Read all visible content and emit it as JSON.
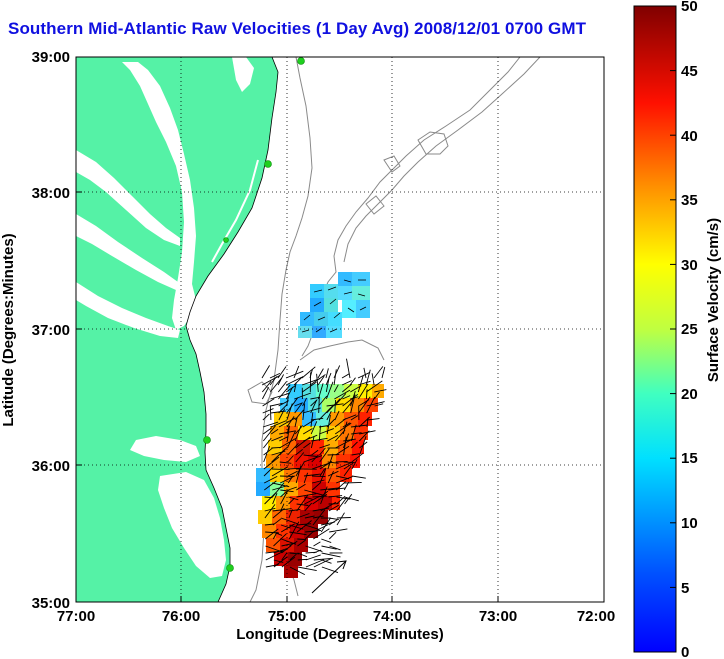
{
  "title": "Southern Mid-Atlantic Raw Velocities (1 Day Avg) 2008/12/01 0700 GMT",
  "xlabel": "Longitude (Degrees:Minutes)",
  "ylabel": "Latitude (Degrees:Minutes)",
  "xticks": [
    "77:00",
    "76:00",
    "75:00",
    "74:00",
    "73:00",
    "72:00"
  ],
  "yticks": [
    "39:00",
    "38:00",
    "37:00",
    "36:00",
    "35:00"
  ],
  "colorbar": {
    "label": "Surface Velocity (cm/s)",
    "ticks": [
      "50",
      "45",
      "40",
      "35",
      "30",
      "25",
      "20",
      "15",
      "10",
      "5",
      "0"
    ],
    "min": 0,
    "max": 50
  },
  "colors": {
    "land": "#55f2a6",
    "water": "#ffffff",
    "title": "#1010e0",
    "bathymetry": "#8a8a8a",
    "station": "#1fcf1f"
  },
  "chart_data": {
    "type": "heatmap",
    "title": "Southern Mid-Atlantic Raw Velocities (1 Day Avg) 2008/12/01 0700 GMT",
    "xlabel": "Longitude (Degrees:Minutes)",
    "ylabel": "Latitude (Degrees:Minutes)",
    "xlim": [
      -77,
      -72
    ],
    "ylim": [
      35,
      39
    ],
    "grid": true,
    "cells": [
      {
        "lon": -74.5,
        "lat": 37.1,
        "speed": 12
      },
      {
        "lon": -74.3,
        "lat": 37.15,
        "speed": 13
      },
      {
        "lon": -74.8,
        "lat": 36.5,
        "speed": 12
      },
      {
        "lon": -74.6,
        "lat": 36.4,
        "speed": 22
      },
      {
        "lon": -74.4,
        "lat": 36.2,
        "speed": 35
      },
      {
        "lon": -74.7,
        "lat": 36.0,
        "speed": 40
      },
      {
        "lon": -74.95,
        "lat": 35.6,
        "speed": 30
      },
      {
        "lon": -74.7,
        "lat": 35.4,
        "speed": 45
      },
      {
        "lon": -75.1,
        "lat": 35.8,
        "speed": 10
      }
    ]
  }
}
